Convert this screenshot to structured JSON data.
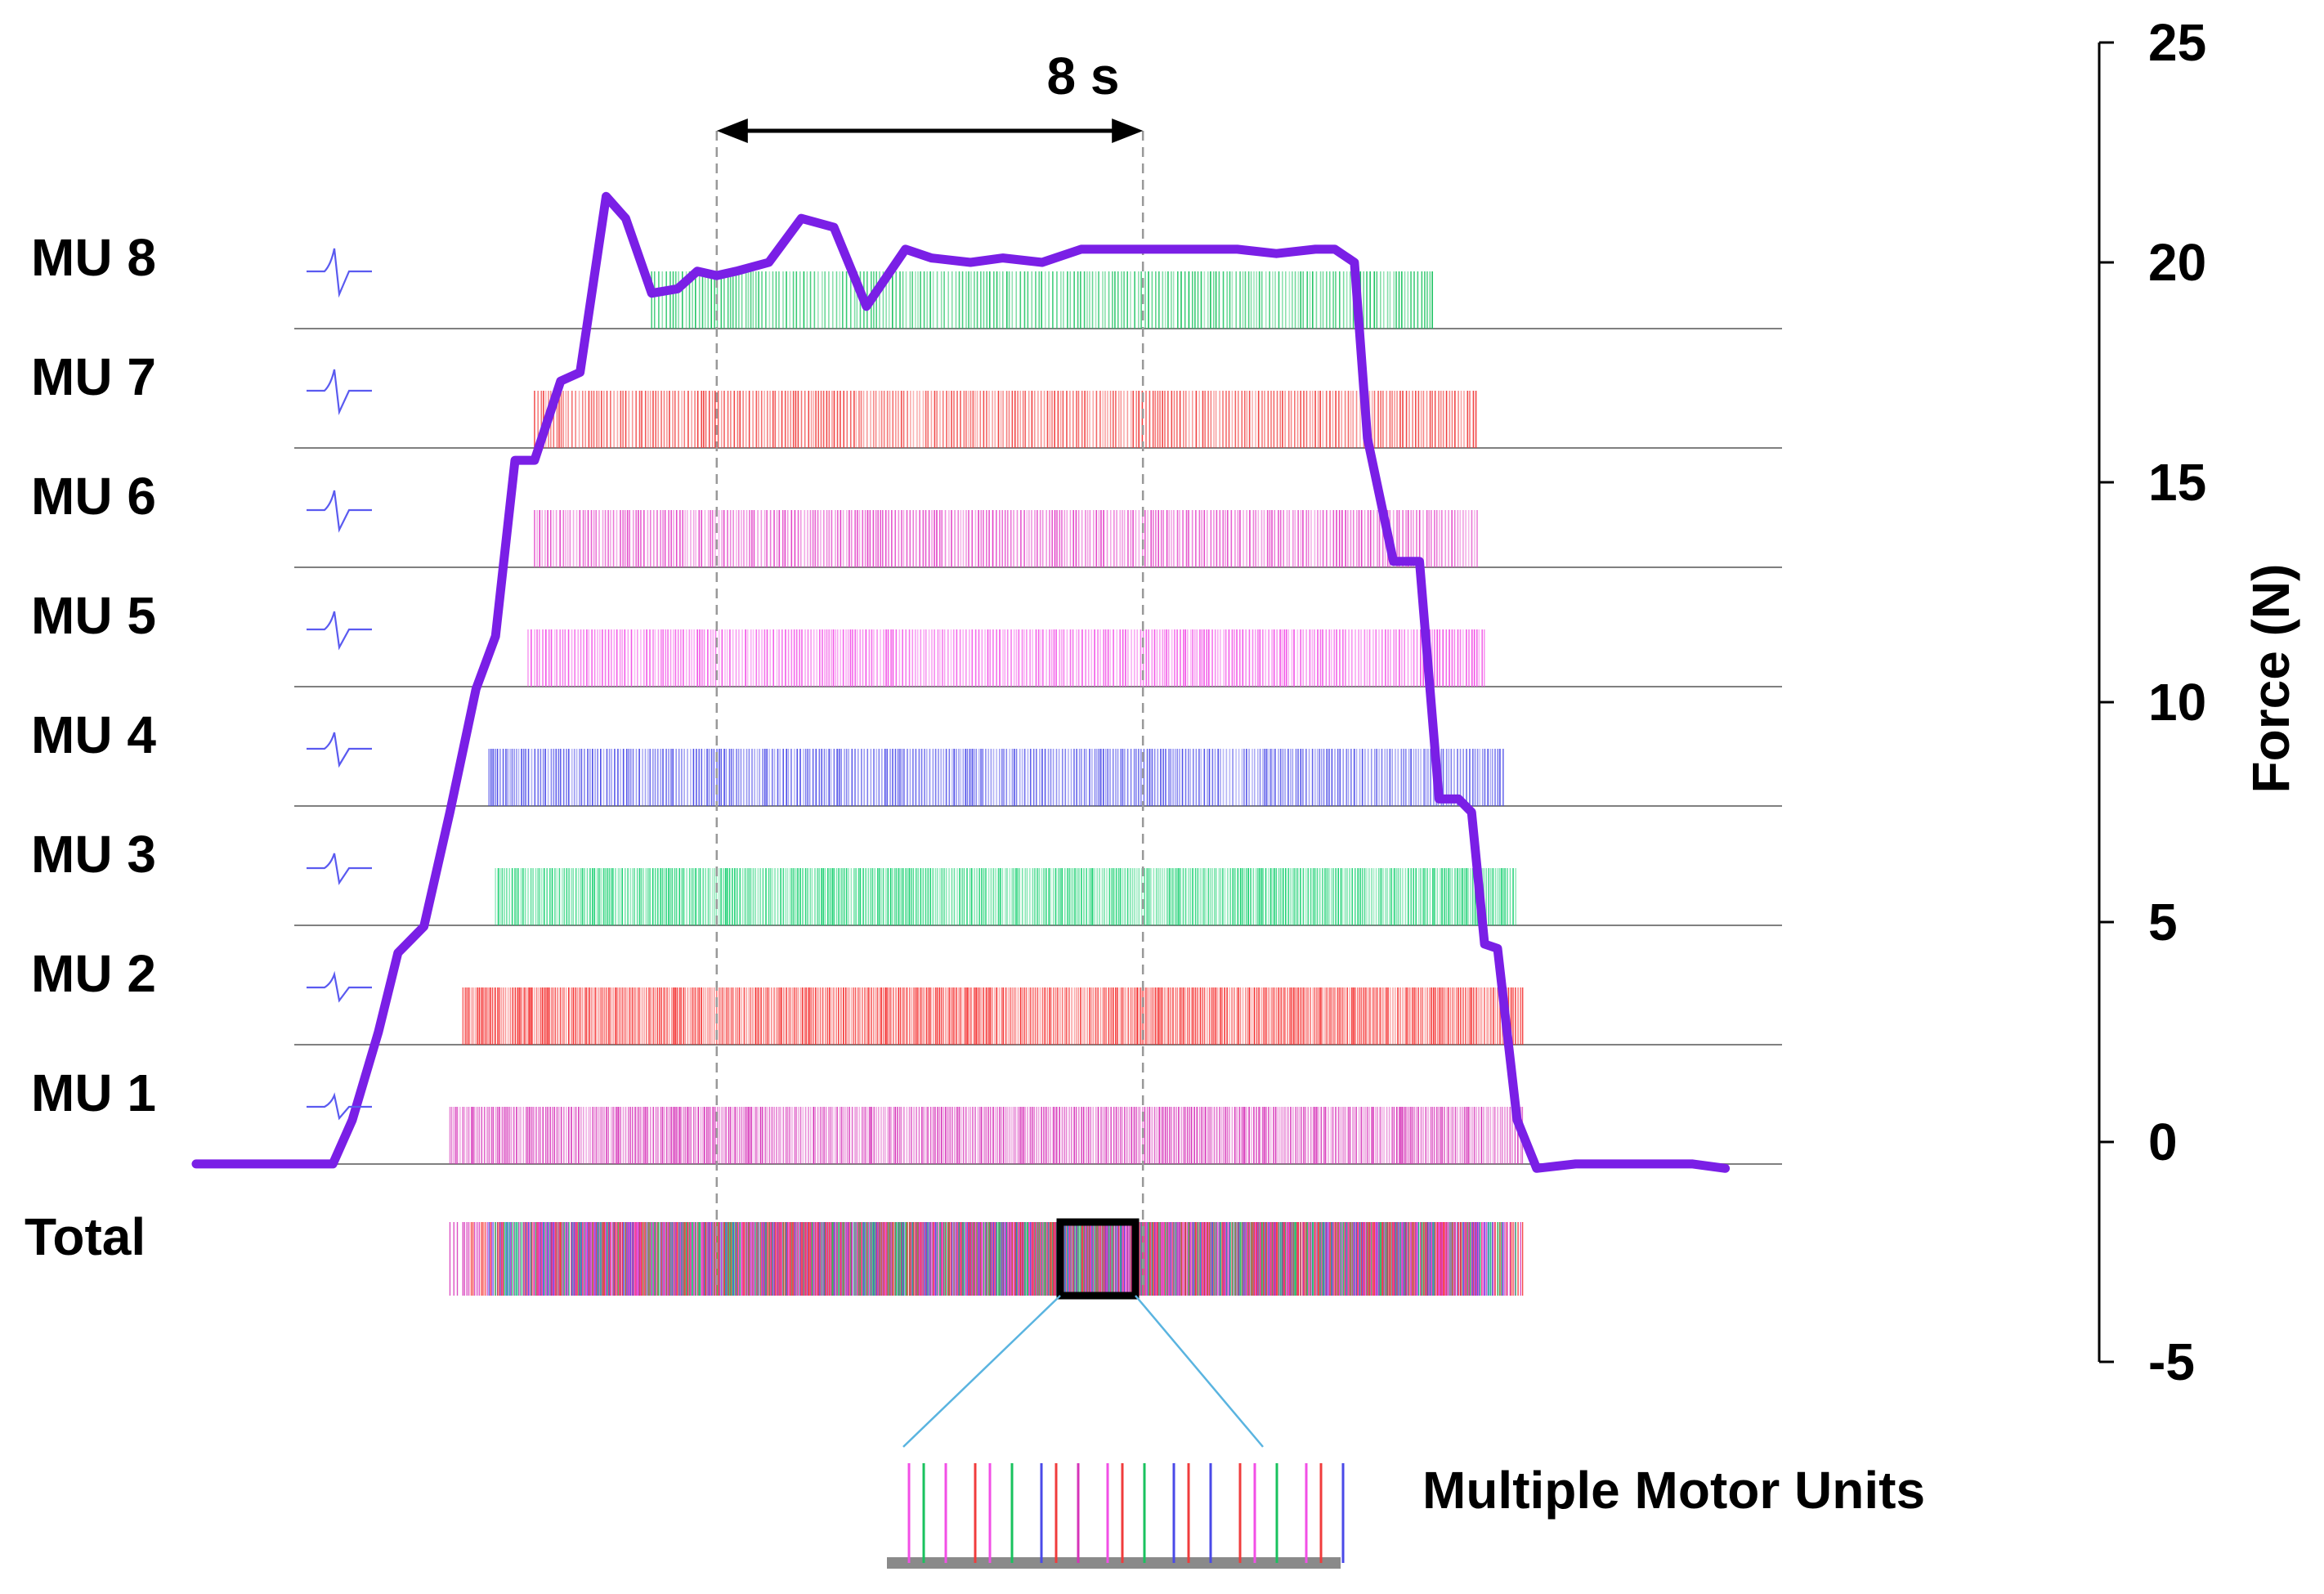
{
  "chart_data": {
    "type": "line",
    "ylabel": "Force (N)",
    "ylim": [
      -5,
      25
    ],
    "yticks": [
      "25",
      "20",
      "15",
      "10",
      "5",
      "0",
      "-5"
    ],
    "time_marker_label": "8 s",
    "time_marker_seconds": 8,
    "zoom_label": "Multiple Motor Units",
    "total_label": "Total",
    "force_series": {
      "name": "",
      "color": "#7a1fe6",
      "t": [
        0,
        2.1,
        2.4,
        2.8,
        3.1,
        3.5,
        3.9,
        4.3,
        4.6,
        4.9,
        5.2,
        5.6,
        5.9,
        6.3,
        6.6,
        7.0,
        7.4,
        7.7,
        8.0,
        8.3,
        8.8,
        9.3,
        9.8,
        10.3,
        10.9,
        11.3,
        11.9,
        12.4,
        13.0,
        13.6,
        14.2,
        14.8,
        15.4,
        16.0,
        16.6,
        17.2,
        17.5,
        17.8,
        18.0,
        18.4,
        18.6,
        18.8,
        19.1,
        19.4,
        19.6,
        19.8,
        20.0,
        20.3,
        20.6,
        21.2,
        22.0,
        23.0,
        23.5
      ],
      "force": [
        -0.5,
        -0.5,
        0.5,
        2.5,
        4.3,
        4.9,
        7.5,
        10.3,
        11.5,
        15.5,
        15.5,
        17.3,
        17.5,
        21.5,
        21.0,
        19.3,
        19.4,
        19.8,
        19.7,
        19.8,
        20.0,
        21.0,
        20.8,
        19.0,
        20.3,
        20.1,
        20.0,
        20.1,
        20.0,
        20.3,
        20.3,
        20.3,
        20.3,
        20.3,
        20.2,
        20.3,
        20.3,
        20.0,
        16.0,
        13.2,
        13.2,
        13.2,
        7.8,
        7.8,
        7.5,
        4.5,
        4.4,
        0.5,
        -0.6,
        -0.5,
        -0.5,
        -0.5,
        -0.6
      ]
    },
    "motor_units": [
      {
        "label": "MU 8",
        "color": "#19c25e",
        "start_s": 7.0,
        "end_s": 19.0,
        "mean_isi_s": 0.05
      },
      {
        "label": "MU 7",
        "color": "#f03c3c",
        "start_s": 5.2,
        "end_s": 19.7,
        "mean_isi_s": 0.045
      },
      {
        "label": "MU 6",
        "color": "#e23fc6",
        "start_s": 5.2,
        "end_s": 19.7,
        "mean_isi_s": 0.045
      },
      {
        "label": "MU 5",
        "color": "#f24fe6",
        "start_s": 5.1,
        "end_s": 19.8,
        "mean_isi_s": 0.042
      },
      {
        "label": "MU 4",
        "color": "#4a4ae8",
        "start_s": 4.5,
        "end_s": 20.1,
        "mean_isi_s": 0.04
      },
      {
        "label": "MU 3",
        "color": "#14cf6e",
        "start_s": 4.6,
        "end_s": 20.3,
        "mean_isi_s": 0.035
      },
      {
        "label": "MU 2",
        "color": "#f42c2c",
        "start_s": 4.1,
        "end_s": 20.4,
        "mean_isi_s": 0.032
      },
      {
        "label": "MU 1",
        "color": "#d633b8",
        "start_s": 3.9,
        "end_s": 20.4,
        "mean_isi_s": 0.034
      }
    ],
    "time_markers_s": [
      8.0,
      14.55
    ]
  }
}
